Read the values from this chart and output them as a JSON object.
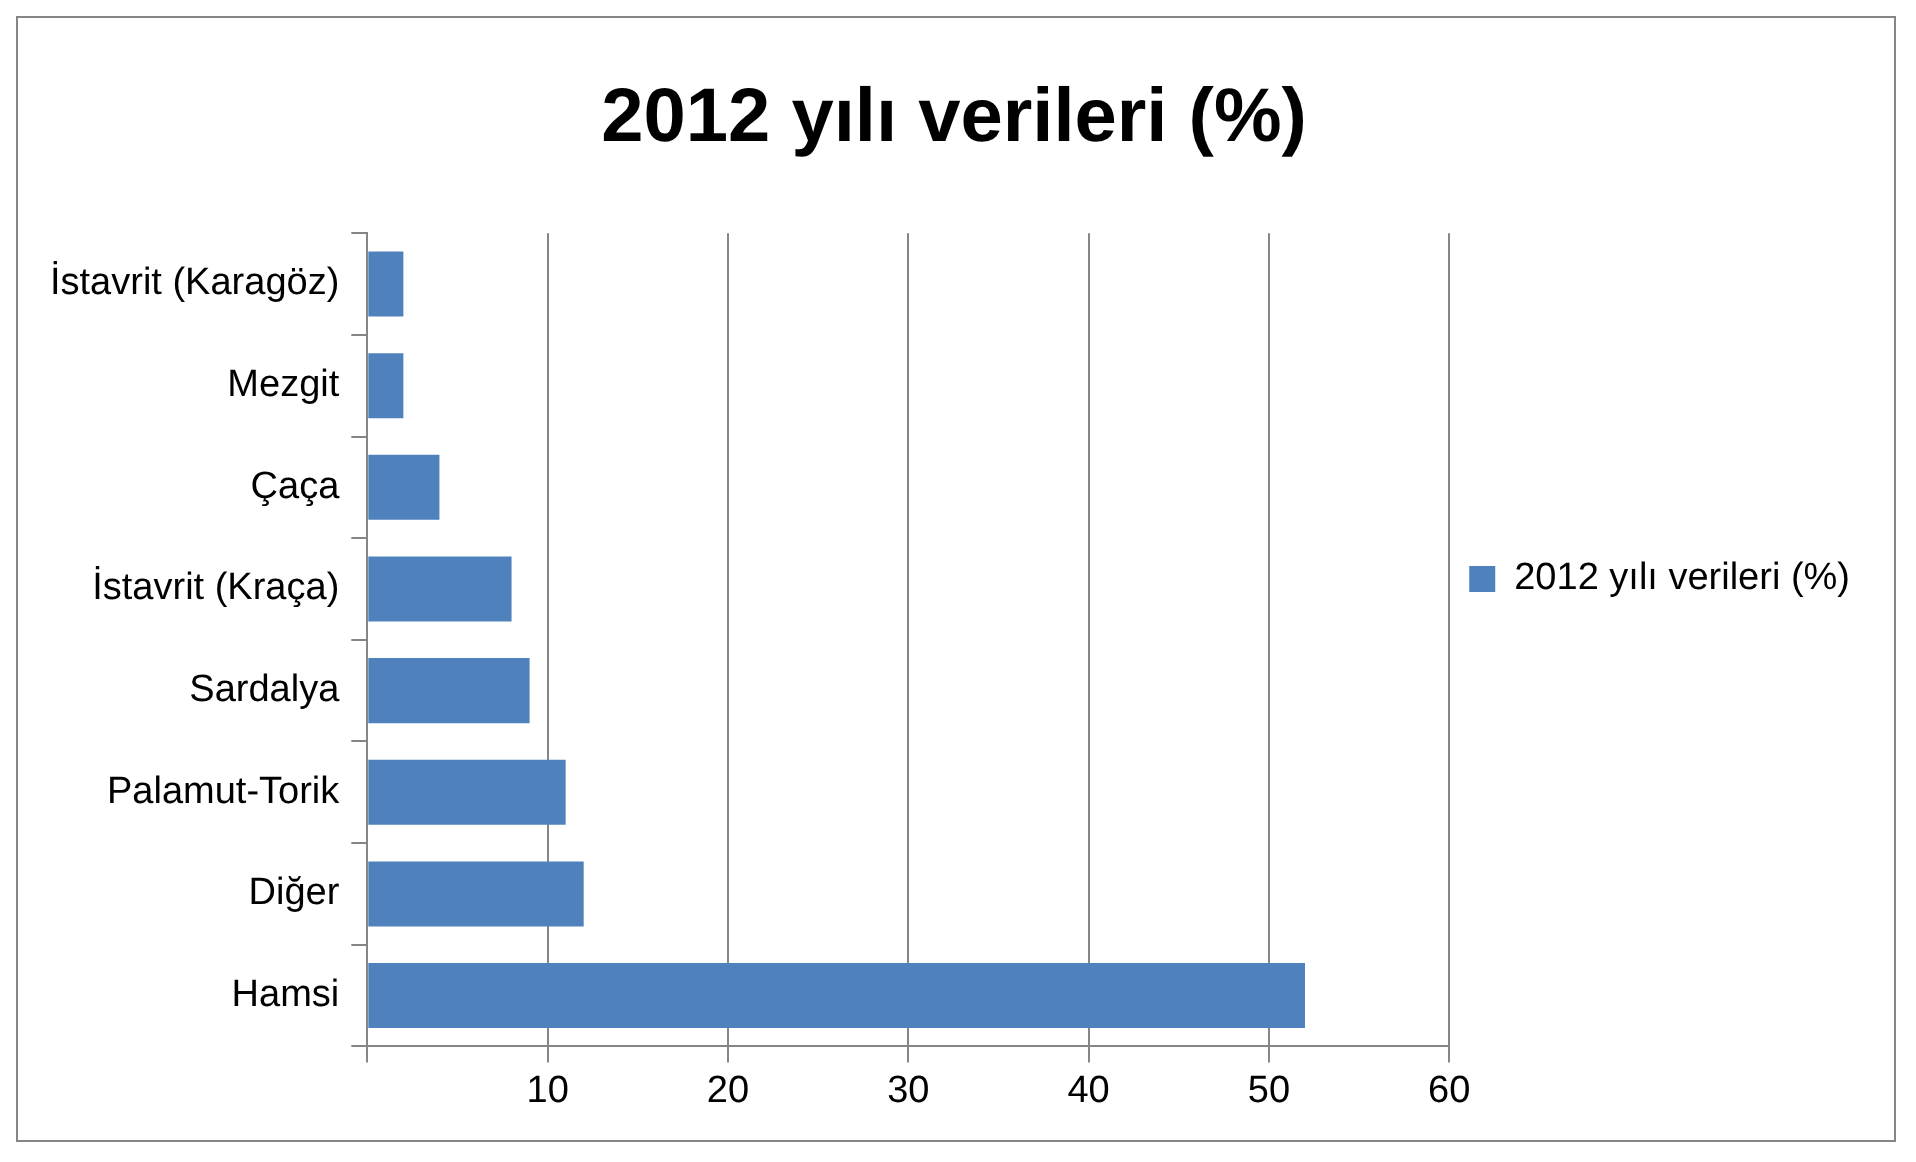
{
  "chart_data": {
    "type": "bar",
    "orientation": "horizontal",
    "title": "2012 yılı verileri (%)",
    "categories": [
      "İstavrit (Karagöz)",
      "Mezgit",
      "Çaça",
      "İstavrit (Kraça)",
      "Sardalya",
      "Palamut-Torik",
      "Diğer",
      "Hamsi"
    ],
    "series": [
      {
        "name": "2012 yılı verileri (%)",
        "color": "#4f81bd",
        "values": [
          2,
          2,
          4,
          8,
          9,
          11,
          12,
          52
        ]
      }
    ],
    "xlim": [
      0,
      60
    ],
    "xticks": [
      {
        "value": 0,
        "label": null
      },
      10,
      20,
      30,
      40,
      50,
      60
    ],
    "grid": "x",
    "legend": "right"
  }
}
